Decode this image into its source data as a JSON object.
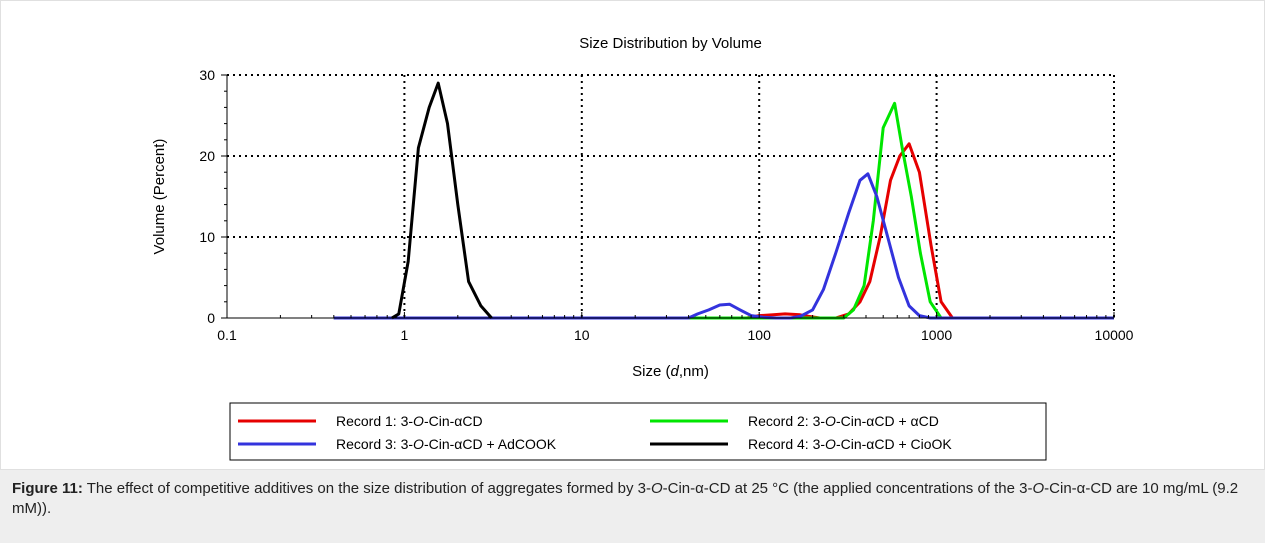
{
  "chart_data": {
    "type": "line",
    "title": "Size Distribution by Volume",
    "xlabel_prefix": "Size (",
    "xlabel_var": "d",
    "xlabel_suffix": ",nm)",
    "ylabel": "Volume (Percent)",
    "xscale": "log",
    "xlim": [
      0.1,
      10000
    ],
    "ylim": [
      0,
      30
    ],
    "xticks": [
      0.1,
      1,
      10,
      100,
      1000,
      10000
    ],
    "xtick_labels": [
      "0.1",
      "1",
      "10",
      "100",
      "1000",
      "10000"
    ],
    "yticks": [
      0,
      10,
      20,
      30
    ],
    "ytick_labels": [
      "0",
      "10",
      "20",
      "30"
    ],
    "grid": true,
    "legend_position": "bottom",
    "series": [
      {
        "name_pre": "Record 1: 3-",
        "name_ital": "O",
        "name_post": "-Cin-αCD",
        "color": "#e60000",
        "x": [
          0.4,
          85,
          100,
          120,
          140,
          170,
          190,
          220,
          270,
          320,
          370,
          420,
          480,
          550,
          620,
          700,
          800,
          930,
          1060,
          1230,
          10000
        ],
        "y": [
          0,
          0,
          0.3,
          0.4,
          0.5,
          0.4,
          0.2,
          0,
          0,
          0.5,
          2,
          4.5,
          10,
          17,
          20,
          21.5,
          18,
          9,
          2,
          0,
          0
        ]
      },
      {
        "name_pre": "Record 2: 3-",
        "name_ital": "O",
        "name_post": "-Cin-αCD + αCD",
        "color": "#00e600",
        "x": [
          0.4,
          300,
          340,
          390,
          440,
          500,
          580,
          640,
          720,
          810,
          920,
          1060,
          10000
        ],
        "y": [
          0,
          0,
          1,
          4,
          12,
          23.5,
          26.5,
          21,
          15,
          8,
          2,
          0,
          0
        ]
      },
      {
        "name_pre": "Record 3: 3-",
        "name_ital": "O",
        "name_post": "-Cin-αCD + AdCOOK",
        "color": "#3333dd",
        "x": [
          0.4,
          40,
          45,
          52,
          60,
          68,
          78,
          90,
          105,
          125,
          150,
          170,
          200,
          230,
          270,
          320,
          370,
          410,
          460,
          530,
          610,
          700,
          800,
          920,
          10000
        ],
        "y": [
          0,
          0,
          0.5,
          1,
          1.6,
          1.7,
          1,
          0.3,
          0.1,
          0,
          0,
          0.2,
          1,
          3.5,
          8,
          13,
          17,
          17.8,
          15,
          10,
          5,
          1.5,
          0.3,
          0,
          0
        ]
      },
      {
        "name_pre": "Record 4: 3-",
        "name_ital": "O",
        "name_post": "-Cin-αCD + CioOK",
        "color": "#000000",
        "x": [
          0.85,
          0.93,
          1.05,
          1.2,
          1.38,
          1.55,
          1.75,
          2.0,
          2.3,
          2.7,
          3.1
        ],
        "y": [
          0,
          0.5,
          7,
          21,
          26,
          29,
          24,
          14,
          4.5,
          1.5,
          0
        ]
      }
    ]
  },
  "caption": {
    "label": "Figure 11:",
    "t1": " The effect of competitive additives on the size distribution of aggregates formed by 3-",
    "i1": "O",
    "t2": "-Cin-α-CD at 25 °C (the applied concentrations of the 3-",
    "i2": "O",
    "t3": "-Cin-α-CD are 10 mg/mL (9.2 mM))."
  }
}
